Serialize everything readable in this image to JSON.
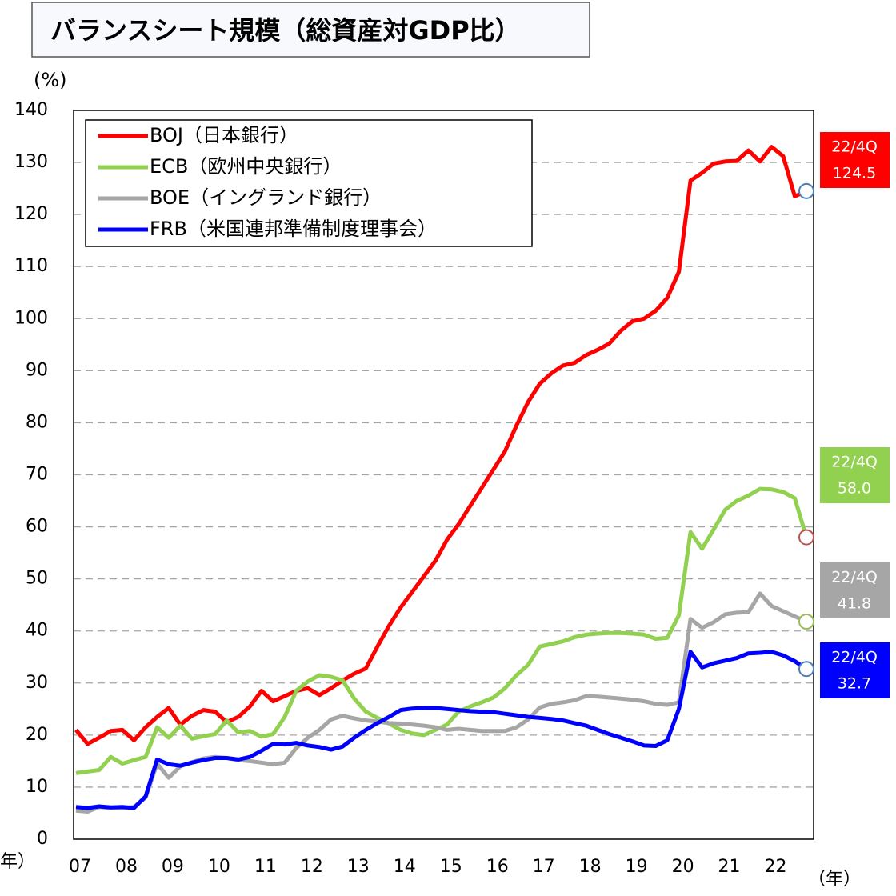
{
  "chart_data": {
    "type": "line",
    "title": "バランスシート規模（総資産対GDP比）",
    "y_label": "(%)",
    "x_label": "（年）",
    "categories": [
      "07",
      null,
      null,
      null,
      "08",
      null,
      null,
      null,
      "09",
      null,
      null,
      null,
      "10",
      null,
      null,
      null,
      "11",
      null,
      null,
      null,
      "12",
      null,
      null,
      null,
      "13",
      null,
      null,
      null,
      "14",
      null,
      null,
      null,
      "15",
      null,
      null,
      null,
      "16",
      null,
      null,
      null,
      "17",
      null,
      null,
      null,
      "18",
      null,
      null,
      null,
      "19",
      null,
      null,
      null,
      "20",
      null,
      null,
      null,
      "21",
      null,
      null,
      null,
      "22",
      null,
      null,
      null
    ],
    "ylim": [
      0,
      140
    ],
    "yticks": [
      0,
      10,
      20,
      30,
      40,
      50,
      60,
      70,
      80,
      90,
      100,
      110,
      120,
      130,
      140
    ],
    "grid": true,
    "legend": "upper left",
    "series": [
      {
        "name": "BOJ（日本銀行）",
        "color": "#ff0000",
        "marker_color": "#4a7ebb",
        "end_label": "22/4Q",
        "end_value_label": "124.5",
        "values": [
          21,
          18.3,
          19.5,
          20.8,
          21,
          19,
          21.5,
          23.5,
          25.2,
          22,
          23.7,
          24.8,
          24.5,
          22.5,
          23.5,
          25.5,
          28.5,
          26.5,
          27.5,
          28.5,
          29,
          27.7,
          29,
          30.5,
          31.8,
          32.8,
          37,
          41,
          44.5,
          47.5,
          50.5,
          53.5,
          57.5,
          60.5,
          64,
          67.5,
          71,
          74.5,
          79.5,
          84,
          87.5,
          89.5,
          91,
          91.5,
          93,
          94,
          95.2,
          97.7,
          99.5,
          100,
          101.5,
          104,
          109,
          126.5,
          128,
          129.8,
          130.2,
          130.3,
          132.3,
          130.2,
          133,
          131.2,
          123.5,
          124.5
        ]
      },
      {
        "name": "ECB（欧州中央銀行）",
        "color": "#92d050",
        "marker_color": "#c0504d",
        "end_label": "22/4Q",
        "end_value_label": "58.0",
        "values": [
          12.7,
          13,
          13.3,
          15.8,
          14.5,
          15.2,
          15.8,
          21.5,
          19.5,
          21.8,
          19.3,
          19.8,
          20.2,
          22.8,
          20.5,
          20.8,
          19.7,
          20.2,
          23.5,
          28.5,
          30.3,
          31.5,
          31.2,
          30.5,
          27,
          24.5,
          23.3,
          22.2,
          21,
          20.3,
          20,
          21,
          22,
          24.5,
          25.5,
          26.3,
          27.2,
          29,
          31.5,
          33.5,
          37,
          37.5,
          38,
          38.8,
          39.3,
          39.5,
          39.6,
          39.6,
          39.5,
          39.3,
          38.5,
          38.7,
          43,
          59,
          55.8,
          59.5,
          63.3,
          65,
          66,
          67.3,
          67.2,
          66.7,
          65.5,
          58
        ]
      },
      {
        "name": "BOE（イングランド銀行）",
        "color": "#a6a6a6",
        "marker_color": "#9bbb59",
        "end_label": "22/4Q",
        "end_value_label": "41.8",
        "values": [
          5.5,
          5.3,
          6.2,
          6,
          6,
          6.2,
          8,
          14.5,
          11.8,
          14,
          14.8,
          15.5,
          15.8,
          15.6,
          15.2,
          15,
          14.7,
          14.4,
          14.7,
          17.5,
          19.5,
          21,
          23,
          23.7,
          23.2,
          22.8,
          22.6,
          22.3,
          22.2,
          22,
          21.8,
          21.5,
          21,
          21.2,
          21,
          20.8,
          20.8,
          20.8,
          21.5,
          23,
          25.3,
          26,
          26.3,
          26.7,
          27.5,
          27.4,
          27.2,
          27,
          26.8,
          26.5,
          26,
          25.8,
          26.3,
          42.3,
          40.6,
          41.7,
          43.2,
          43.5,
          43.6,
          47.2,
          44.8,
          43.8,
          42.8,
          41.8
        ]
      },
      {
        "name": "FRB（米国連邦準備制度理事会）",
        "color": "#0000ff",
        "marker_color": "#4a7ebb",
        "end_label": "22/4Q",
        "end_value_label": "32.7",
        "values": [
          6.2,
          6,
          6.3,
          6.1,
          6.2,
          6,
          8.2,
          15.3,
          14.4,
          14.1,
          14.7,
          15.2,
          15.6,
          15.6,
          15.3,
          15.8,
          17,
          18.3,
          18.2,
          18.5,
          18,
          17.7,
          17.2,
          17.8,
          19.5,
          21,
          22.3,
          23.5,
          24.8,
          25.1,
          25.2,
          25.2,
          25,
          24.8,
          24.6,
          24.5,
          24.4,
          24.1,
          23.8,
          23.5,
          23.3,
          23.1,
          22.8,
          22.3,
          21.8,
          21,
          20.2,
          19.5,
          18.8,
          18,
          17.9,
          19,
          25,
          36,
          33,
          33.8,
          34.3,
          34.8,
          35.7,
          35.8,
          36,
          35.3,
          34.2,
          32.7
        ]
      }
    ]
  }
}
